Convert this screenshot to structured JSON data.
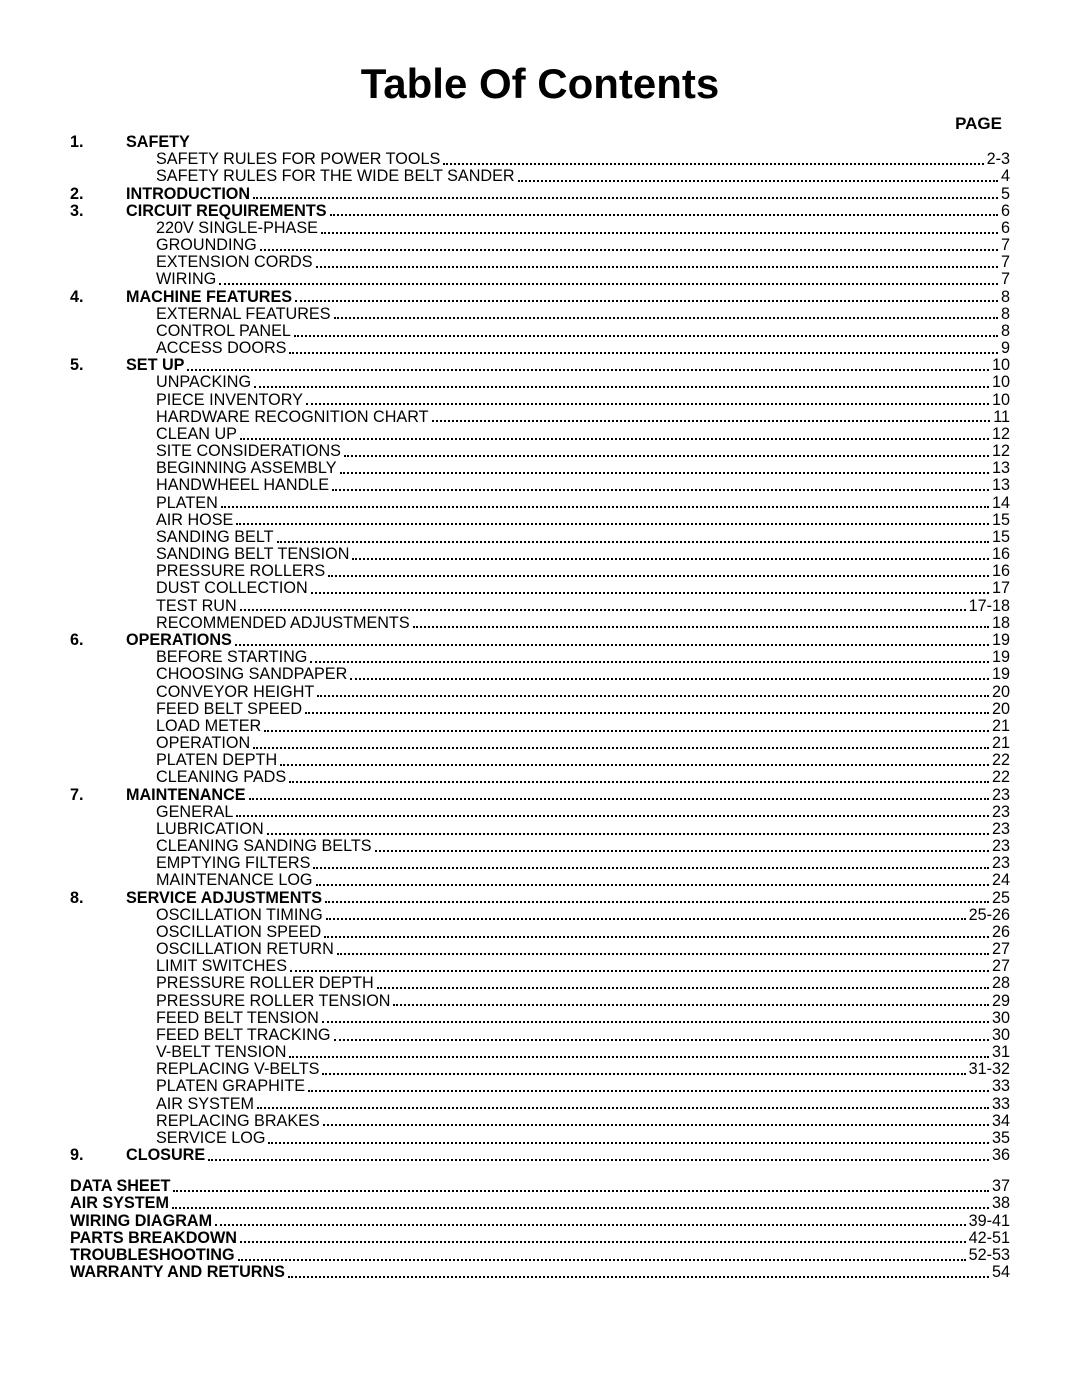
{
  "title": "Table Of Contents",
  "pageHeader": "PAGE",
  "sections": [
    {
      "num": "1.",
      "label": "SAFETY",
      "page": "",
      "bold": true,
      "indent": 1,
      "noDots": true
    },
    {
      "num": "",
      "label": "SAFETY RULES FOR POWER TOOLS",
      "page": "2-3",
      "indent": 2
    },
    {
      "num": "",
      "label": "SAFETY RULES FOR THE WIDE BELT SANDER",
      "page": "4",
      "indent": 2
    },
    {
      "num": "2.",
      "label": "INTRODUCTION",
      "page": "5",
      "bold": true,
      "indent": 1
    },
    {
      "num": "3.",
      "label": "CIRCUIT REQUIREMENTS",
      "page": "6",
      "bold": true,
      "indent": 1
    },
    {
      "num": "",
      "label": "220V SINGLE-PHASE",
      "page": "6",
      "indent": 2
    },
    {
      "num": "",
      "label": "GROUNDING",
      "page": "7",
      "indent": 2
    },
    {
      "num": "",
      "label": "EXTENSION CORDS",
      "page": "7",
      "indent": 2
    },
    {
      "num": "",
      "label": "WIRING",
      "page": "7",
      "indent": 2
    },
    {
      "num": "4.",
      "label": "MACHINE FEATURES",
      "page": "8",
      "bold": true,
      "indent": 1
    },
    {
      "num": "",
      "label": "EXTERNAL FEATURES",
      "page": "8",
      "indent": 2
    },
    {
      "num": "",
      "label": "CONTROL PANEL",
      "page": "8",
      "indent": 2
    },
    {
      "num": "",
      "label": "ACCESS DOORS",
      "page": "9",
      "indent": 2
    },
    {
      "num": "5.",
      "label": "SET UP",
      "page": "10",
      "bold": true,
      "indent": 1
    },
    {
      "num": "",
      "label": "UNPACKING",
      "page": "10",
      "indent": 2
    },
    {
      "num": "",
      "label": "PIECE INVENTORY",
      "page": "10",
      "indent": 2
    },
    {
      "num": "",
      "label": "HARDWARE RECOGNITION CHART",
      "page": "11",
      "indent": 2
    },
    {
      "num": "",
      "label": "CLEAN UP",
      "page": "12",
      "indent": 2
    },
    {
      "num": "",
      "label": "SITE CONSIDERATIONS",
      "page": "12",
      "indent": 2
    },
    {
      "num": "",
      "label": "BEGINNING ASSEMBLY",
      "page": "13",
      "indent": 2
    },
    {
      "num": "",
      "label": "HANDWHEEL HANDLE",
      "page": "13",
      "indent": 2
    },
    {
      "num": "",
      "label": "PLATEN",
      "page": "14",
      "indent": 2
    },
    {
      "num": "",
      "label": "AIR HOSE",
      "page": "15",
      "indent": 2
    },
    {
      "num": "",
      "label": "SANDING BELT",
      "page": "15",
      "indent": 2
    },
    {
      "num": "",
      "label": "SANDING BELT TENSION",
      "page": "16",
      "indent": 2
    },
    {
      "num": "",
      "label": "PRESSURE ROLLERS",
      "page": "16",
      "indent": 2
    },
    {
      "num": "",
      "label": "DUST COLLECTION",
      "page": "17",
      "indent": 2
    },
    {
      "num": "",
      "label": "TEST RUN",
      "page": "17-18",
      "indent": 2
    },
    {
      "num": "",
      "label": "RECOMMENDED ADJUSTMENTS",
      "page": "18",
      "indent": 2
    },
    {
      "num": "6.",
      "label": "OPERATIONS",
      "page": "19",
      "bold": true,
      "indent": 1
    },
    {
      "num": "",
      "label": "BEFORE STARTING",
      "page": "19",
      "indent": 2
    },
    {
      "num": "",
      "label": "CHOOSING SANDPAPER",
      "page": "19",
      "indent": 2
    },
    {
      "num": "",
      "label": "CONVEYOR HEIGHT",
      "page": "20",
      "indent": 2
    },
    {
      "num": "",
      "label": "FEED BELT SPEED",
      "page": "20",
      "indent": 2
    },
    {
      "num": "",
      "label": "LOAD METER",
      "page": "21",
      "indent": 2
    },
    {
      "num": "",
      "label": "OPERATION",
      "page": "21",
      "indent": 2
    },
    {
      "num": "",
      "label": "PLATEN DEPTH",
      "page": "22",
      "indent": 2
    },
    {
      "num": "",
      "label": "CLEANING PADS",
      "page": "22",
      "indent": 2
    },
    {
      "num": "7.",
      "label": "MAINTENANCE",
      "page": "23",
      "bold": true,
      "indent": 1
    },
    {
      "num": "",
      "label": "GENERAL",
      "page": "23",
      "indent": 2
    },
    {
      "num": "",
      "label": "LUBRICATION",
      "page": "23",
      "indent": 2
    },
    {
      "num": "",
      "label": "CLEANING SANDING BELTS",
      "page": "23",
      "indent": 2
    },
    {
      "num": "",
      "label": "EMPTYING FILTERS",
      "page": "23",
      "indent": 2
    },
    {
      "num": "",
      "label": "MAINTENANCE LOG",
      "page": "24",
      "indent": 2
    },
    {
      "num": "8.",
      "label": "SERVICE ADJUSTMENTS",
      "page": "25",
      "bold": true,
      "indent": 1
    },
    {
      "num": "",
      "label": "OSCILLATION TIMING",
      "page": "25-26",
      "indent": 2
    },
    {
      "num": "",
      "label": "OSCILLATION SPEED",
      "page": "26",
      "indent": 2
    },
    {
      "num": "",
      "label": "OSCILLATION RETURN",
      "page": "27",
      "indent": 2
    },
    {
      "num": "",
      "label": "LIMIT SWITCHES",
      "page": "27",
      "indent": 2
    },
    {
      "num": "",
      "label": "PRESSURE ROLLER DEPTH",
      "page": "28",
      "indent": 2
    },
    {
      "num": "",
      "label": "PRESSURE ROLLER TENSION",
      "page": "29",
      "indent": 2
    },
    {
      "num": "",
      "label": "FEED BELT TENSION",
      "page": "30",
      "indent": 2
    },
    {
      "num": "",
      "label": "FEED BELT TRACKING",
      "page": "30",
      "indent": 2
    },
    {
      "num": "",
      "label": "V-BELT TENSION",
      "page": "31",
      "indent": 2
    },
    {
      "num": "",
      "label": "REPLACING V-BELTS",
      "page": "31-32",
      "indent": 2
    },
    {
      "num": "",
      "label": "PLATEN GRAPHITE",
      "page": "33",
      "indent": 2
    },
    {
      "num": "",
      "label": "AIR SYSTEM",
      "page": "33",
      "indent": 2
    },
    {
      "num": "",
      "label": "REPLACING BRAKES",
      "page": "34",
      "indent": 2
    },
    {
      "num": "",
      "label": "SERVICE LOG",
      "page": "35",
      "indent": 2
    },
    {
      "num": "9.",
      "label": "CLOSURE",
      "page": "36",
      "bold": true,
      "indent": 1
    }
  ],
  "appendix": [
    {
      "label": "DATA SHEET",
      "page": "37"
    },
    {
      "label": "AIR SYSTEM",
      "page": "38"
    },
    {
      "label": "WIRING DIAGRAM",
      "page": "39-41"
    },
    {
      "label": "PARTS BREAKDOWN",
      "page": "42-51"
    },
    {
      "label": "TROUBLESHOOTING",
      "page": "52-53"
    },
    {
      "label": "WARRANTY AND RETURNS",
      "page": "54"
    }
  ]
}
